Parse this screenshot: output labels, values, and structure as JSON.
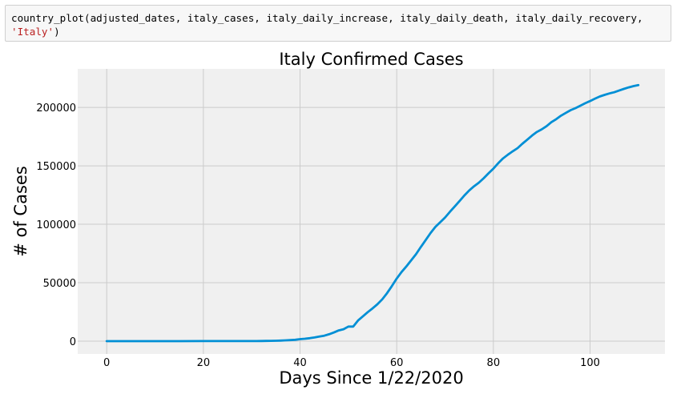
{
  "code_cell": {
    "line1": "country_plot(adjusted_dates, italy_cases, italy_daily_increase, italy_daily_death, italy_daily_recovery,",
    "line2_string": "'Italy'",
    "line2_rest": ")"
  },
  "colors": {
    "line": "#008fd5",
    "plot_background": "#f0f0f0",
    "grid": "#cbcbcb"
  },
  "chart_data": {
    "type": "line",
    "title": "Italy Confirmed Cases",
    "xlabel": "Days Since 1/22/2020",
    "ylabel": "# of Cases",
    "xlim": [
      -6,
      115.5
    ],
    "ylim": [
      -11000,
      233000
    ],
    "xticks": [
      0,
      20,
      40,
      60,
      80,
      100
    ],
    "xtick_labels": [
      "0",
      "20",
      "40",
      "60",
      "80",
      "100"
    ],
    "yticks": [
      0,
      50000,
      100000,
      150000,
      200000
    ],
    "ytick_labels": [
      "0",
      "50000",
      "100000",
      "150000",
      "200000"
    ],
    "grid": true,
    "series": [
      {
        "name": "Italy",
        "x": [
          0,
          5,
          10,
          15,
          20,
          25,
          28,
          30,
          31,
          32,
          33,
          34,
          35,
          36,
          37,
          38,
          39,
          40,
          41,
          42,
          43,
          44,
          45,
          46,
          47,
          48,
          49,
          50,
          51,
          52,
          53,
          54,
          55,
          56,
          57,
          58,
          59,
          60,
          61,
          62,
          63,
          64,
          65,
          66,
          67,
          68,
          69,
          70,
          71,
          72,
          73,
          74,
          75,
          76,
          77,
          78,
          79,
          80,
          81,
          82,
          83,
          84,
          85,
          86,
          87,
          88,
          89,
          90,
          91,
          92,
          93,
          94,
          95,
          96,
          97,
          98,
          99,
          100,
          101,
          102,
          103,
          104,
          105,
          106,
          107,
          108,
          109,
          110
        ],
        "y": [
          0,
          0,
          0,
          0,
          3,
          3,
          3,
          3,
          20,
          79,
          150,
          227,
          320,
          445,
          650,
          888,
          1128,
          1694,
          2036,
          2502,
          3089,
          3858,
          4636,
          5883,
          7375,
          9172,
          10149,
          12462,
          12462,
          17660,
          21157,
          24747,
          27980,
          31506,
          35713,
          41035,
          47021,
          53578,
          59138,
          63927,
          69176,
          74386,
          80589,
          86498,
          92472,
          97689,
          101739,
          105792,
          110574,
          115242,
          119827,
          124632,
          128948,
          132547,
          135586,
          139422,
          143626,
          147577,
          152271,
          156363,
          159516,
          162488,
          165155,
          168941,
          172434,
          175925,
          178972,
          181228,
          183957,
          187327,
          189973,
          192994,
          195351,
          197675,
          199414,
          201505,
          203591,
          205463,
          207428,
          209328,
          210717,
          211938,
          213013,
          214457,
          215858,
          217185,
          218268,
          219070
        ]
      }
    ]
  }
}
